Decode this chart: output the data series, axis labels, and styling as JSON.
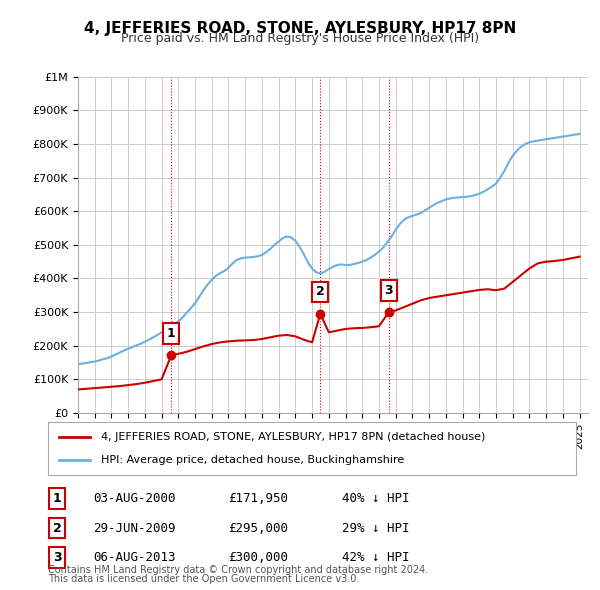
{
  "title": "4, JEFFERIES ROAD, STONE, AYLESBURY, HP17 8PN",
  "subtitle": "Price paid vs. HM Land Registry's House Price Index (HPI)",
  "hpi_color": "#6ab0e0",
  "price_color": "#cc0000",
  "marker_color": "#cc0000",
  "background_color": "#ffffff",
  "grid_color": "#cccccc",
  "ylim": [
    0,
    1000000
  ],
  "yticks": [
    0,
    100000,
    200000,
    300000,
    400000,
    500000,
    600000,
    700000,
    800000,
    900000,
    1000000
  ],
  "ytick_labels": [
    "£0",
    "£100K",
    "£200K",
    "£300K",
    "£400K",
    "£500K",
    "£600K",
    "£700K",
    "£800K",
    "£900K",
    "£1M"
  ],
  "xlim_start": 1995.0,
  "xlim_end": 2025.5,
  "sale_dates": [
    2000.58,
    2009.49,
    2013.59
  ],
  "sale_prices": [
    171950,
    295000,
    300000
  ],
  "sale_labels": [
    "1",
    "2",
    "3"
  ],
  "sale_date_strs": [
    "03-AUG-2000",
    "29-JUN-2009",
    "06-AUG-2013"
  ],
  "sale_price_strs": [
    "£171,950",
    "£295,000",
    "£300,000"
  ],
  "sale_hpi_strs": [
    "40% ↓ HPI",
    "29% ↓ HPI",
    "42% ↓ HPI"
  ],
  "legend_red_label": "4, JEFFERIES ROAD, STONE, AYLESBURY, HP17 8PN (detached house)",
  "legend_blue_label": "HPI: Average price, detached house, Buckinghamshire",
  "footer_line1": "Contains HM Land Registry data © Crown copyright and database right 2024.",
  "footer_line2": "This data is licensed under the Open Government Licence v3.0.",
  "hpi_x": [
    1995,
    1995.25,
    1995.5,
    1995.75,
    1996,
    1996.25,
    1996.5,
    1996.75,
    1997,
    1997.25,
    1997.5,
    1997.75,
    1998,
    1998.25,
    1998.5,
    1998.75,
    1999,
    1999.25,
    1999.5,
    1999.75,
    2000,
    2000.25,
    2000.5,
    2000.75,
    2001,
    2001.25,
    2001.5,
    2001.75,
    2002,
    2002.25,
    2002.5,
    2002.75,
    2003,
    2003.25,
    2003.5,
    2003.75,
    2004,
    2004.25,
    2004.5,
    2004.75,
    2005,
    2005.25,
    2005.5,
    2005.75,
    2006,
    2006.25,
    2006.5,
    2006.75,
    2007,
    2007.25,
    2007.5,
    2007.75,
    2008,
    2008.25,
    2008.5,
    2008.75,
    2009,
    2009.25,
    2009.5,
    2009.75,
    2010,
    2010.25,
    2010.5,
    2010.75,
    2011,
    2011.25,
    2011.5,
    2011.75,
    2012,
    2012.25,
    2012.5,
    2012.75,
    2013,
    2013.25,
    2013.5,
    2013.75,
    2014,
    2014.25,
    2014.5,
    2014.75,
    2015,
    2015.25,
    2015.5,
    2015.75,
    2016,
    2016.25,
    2016.5,
    2016.75,
    2017,
    2017.25,
    2017.5,
    2017.75,
    2018,
    2018.25,
    2018.5,
    2018.75,
    2019,
    2019.25,
    2019.5,
    2019.75,
    2020,
    2020.25,
    2020.5,
    2020.75,
    2021,
    2021.25,
    2021.5,
    2021.75,
    2022,
    2022.25,
    2022.5,
    2022.75,
    2023,
    2023.25,
    2023.5,
    2023.75,
    2024,
    2024.25,
    2024.5,
    2024.75,
    2025
  ],
  "hpi_y": [
    145000,
    147000,
    149000,
    151000,
    153000,
    156000,
    160000,
    163000,
    168000,
    174000,
    180000,
    186000,
    191000,
    196000,
    201000,
    206000,
    212000,
    218000,
    225000,
    232000,
    240000,
    248000,
    256000,
    264000,
    272000,
    284000,
    298000,
    312000,
    326000,
    345000,
    365000,
    382000,
    396000,
    408000,
    416000,
    422000,
    432000,
    445000,
    455000,
    460000,
    462000,
    463000,
    464000,
    466000,
    470000,
    478000,
    488000,
    500000,
    510000,
    520000,
    525000,
    522000,
    512000,
    495000,
    472000,
    448000,
    430000,
    418000,
    415000,
    420000,
    428000,
    435000,
    440000,
    442000,
    440000,
    440000,
    443000,
    446000,
    450000,
    455000,
    462000,
    470000,
    480000,
    492000,
    508000,
    525000,
    545000,
    562000,
    575000,
    582000,
    586000,
    590000,
    595000,
    602000,
    610000,
    618000,
    625000,
    630000,
    635000,
    638000,
    640000,
    641000,
    642000,
    643000,
    645000,
    648000,
    652000,
    658000,
    665000,
    673000,
    682000,
    700000,
    720000,
    745000,
    765000,
    780000,
    792000,
    800000,
    805000,
    808000,
    810000,
    812000,
    814000,
    816000,
    818000,
    820000,
    822000,
    824000,
    826000,
    828000,
    830000
  ],
  "price_x": [
    1995.0,
    1995.5,
    1996.0,
    1996.5,
    1997.0,
    1997.5,
    1998.0,
    1998.5,
    1999.0,
    1999.5,
    2000.0,
    2000.58,
    2001.0,
    2001.5,
    2002.0,
    2002.5,
    2003.0,
    2003.5,
    2004.0,
    2004.5,
    2005.0,
    2005.5,
    2006.0,
    2006.5,
    2007.0,
    2007.5,
    2008.0,
    2008.5,
    2009.0,
    2009.49,
    2010.0,
    2010.5,
    2011.0,
    2011.5,
    2012.0,
    2012.5,
    2013.0,
    2013.59,
    2014.0,
    2014.5,
    2015.0,
    2015.5,
    2016.0,
    2016.5,
    2017.0,
    2017.5,
    2018.0,
    2018.5,
    2019.0,
    2019.5,
    2020.0,
    2020.5,
    2021.0,
    2021.5,
    2022.0,
    2022.5,
    2023.0,
    2023.5,
    2024.0,
    2024.5,
    2025.0
  ],
  "price_y": [
    70000,
    72000,
    74000,
    76000,
    78000,
    80000,
    83000,
    86000,
    90000,
    95000,
    100000,
    171950,
    176000,
    182000,
    190000,
    198000,
    205000,
    210000,
    213000,
    215000,
    216000,
    217000,
    220000,
    225000,
    230000,
    232000,
    228000,
    218000,
    210000,
    295000,
    240000,
    245000,
    250000,
    252000,
    253000,
    255000,
    258000,
    300000,
    305000,
    315000,
    325000,
    335000,
    342000,
    346000,
    350000,
    354000,
    358000,
    362000,
    366000,
    368000,
    365000,
    370000,
    390000,
    410000,
    430000,
    445000,
    450000,
    452000,
    455000,
    460000,
    465000
  ]
}
